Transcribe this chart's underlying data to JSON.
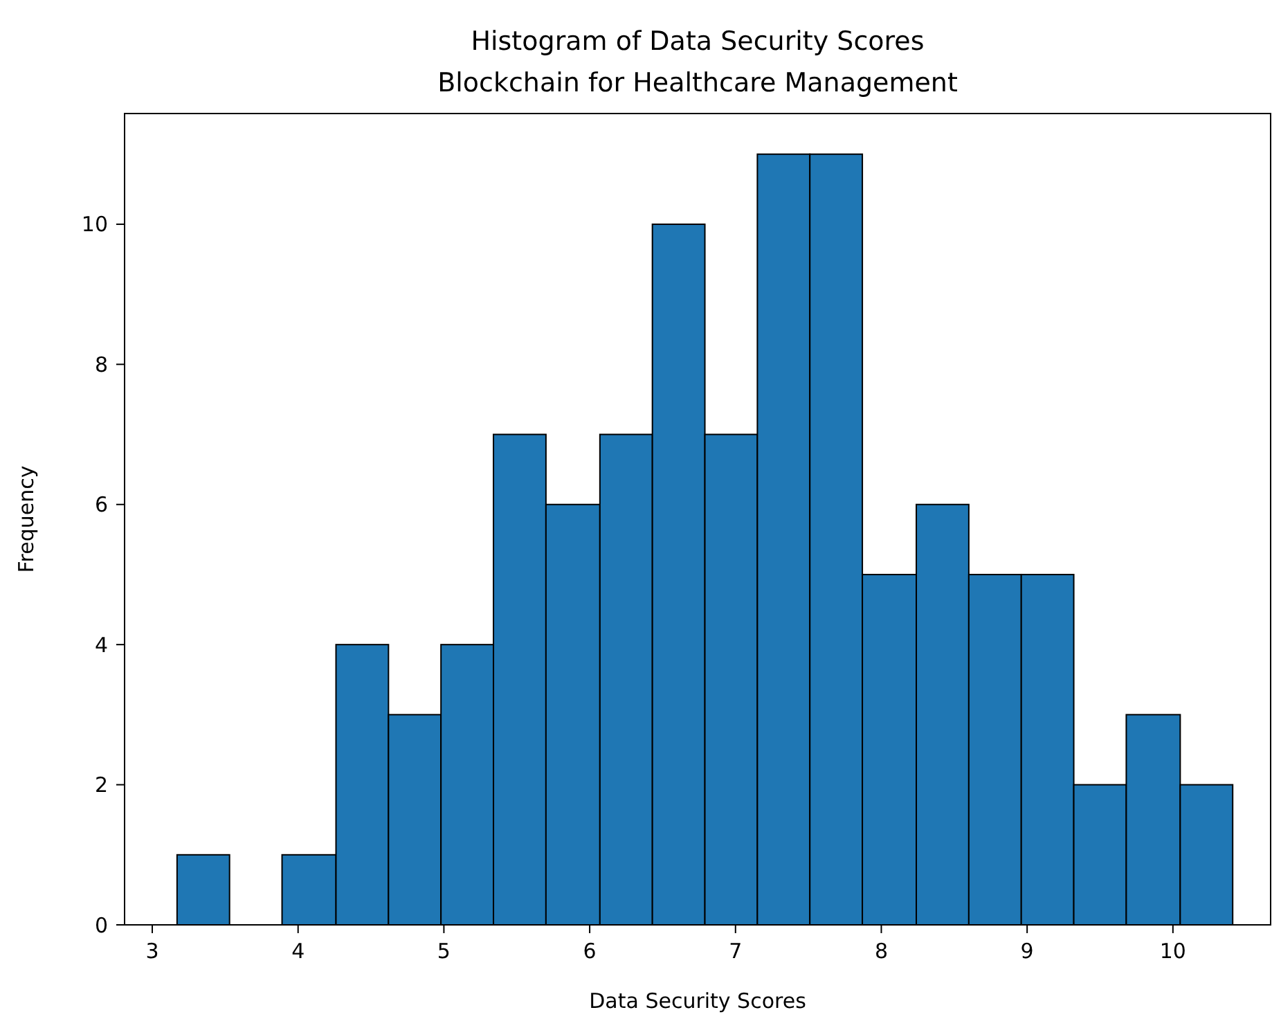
{
  "chart_data": {
    "type": "histogram",
    "title": "Histogram of Data Security Scores",
    "subtitle": "Blockchain for Healthcare Management",
    "xlabel": "Data Security Scores",
    "ylabel": "Frequency",
    "bins": [
      3.17,
      3.53,
      3.89,
      4.26,
      4.62,
      4.98,
      5.34,
      5.7,
      6.07,
      6.43,
      6.79,
      7.15,
      7.51,
      7.87,
      8.24,
      8.6,
      8.96,
      9.32,
      9.68,
      10.05,
      10.41
    ],
    "values": [
      1,
      0,
      1,
      4,
      3,
      4,
      7,
      6,
      7,
      10,
      7,
      11,
      11,
      5,
      6,
      5,
      5,
      2,
      3,
      2
    ],
    "color": "#1f77b4",
    "xlim": [
      2.81,
      10.67
    ],
    "ylim": [
      0,
      11.58
    ],
    "xticks": [
      3,
      4,
      5,
      6,
      7,
      8,
      9,
      10
    ],
    "yticks": [
      0,
      2,
      4,
      6,
      8,
      10
    ],
    "grid": false
  }
}
